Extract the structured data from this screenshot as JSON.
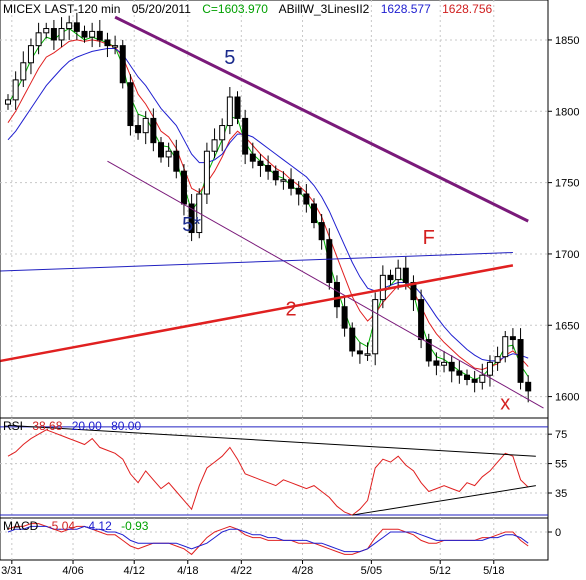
{
  "chart_data": [
    {
      "type": "candlestick",
      "header": {
        "symbol": "MICEX LAST-120 min",
        "date": "05/20/2011",
        "close_label": "C=1603.970",
        "indicator": "ABillW_3LinesII2",
        "value1": "1628.577",
        "value2": "1628.756"
      },
      "ylim": [
        1585,
        1878
      ],
      "y_ticks": [
        1600,
        1650,
        1700,
        1750,
        1800,
        1850
      ],
      "x_ticks": [
        "3/31",
        "4/06",
        "4/12",
        "4/18",
        "4/22",
        "4/28",
        "5/05",
        "5/12",
        "5/18"
      ],
      "x_tick_positions": [
        0.5,
        8.5,
        16.5,
        23.5,
        30.5,
        38.5,
        47.5,
        56.5,
        63.5
      ],
      "bars": 69,
      "series": [
        {
          "name": "close",
          "values": [
            1808,
            1822,
            1834,
            1846,
            1855,
            1858,
            1850,
            1858,
            1862,
            1856,
            1852,
            1856,
            1850,
            1846,
            1846,
            1820,
            1790,
            1785,
            1795,
            1778,
            1768,
            1772,
            1758,
            1735,
            1715,
            1742,
            1772,
            1780,
            1790,
            1810,
            1795,
            1770,
            1765,
            1762,
            1758,
            1752,
            1752,
            1746,
            1742,
            1735,
            1722,
            1710,
            1680,
            1663,
            1648,
            1632,
            1630,
            1630,
            1668,
            1685,
            1682,
            1690,
            1680,
            1668,
            1640,
            1625,
            1622,
            1624,
            1618,
            1615,
            1612,
            1610,
            1615,
            1624,
            1628,
            1642,
            1640,
            1610,
            1604
          ]
        },
        {
          "name": "green-ma",
          "values": [
            1805,
            1814,
            1824,
            1836,
            1845,
            1852,
            1850,
            1855,
            1858,
            1854,
            1850,
            1852,
            1850,
            1848,
            1845,
            1832,
            1810,
            1798,
            1796,
            1786,
            1776,
            1775,
            1766,
            1748,
            1730,
            1738,
            1756,
            1768,
            1780,
            1796,
            1795,
            1778,
            1770,
            1765,
            1760,
            1755,
            1753,
            1748,
            1744,
            1738,
            1728,
            1716,
            1694,
            1676,
            1660,
            1645,
            1638,
            1635,
            1655,
            1672,
            1678,
            1684,
            1680,
            1672,
            1652,
            1636,
            1628,
            1626,
            1622,
            1618,
            1615,
            1612,
            1614,
            1620,
            1625,
            1635,
            1636,
            1622,
            1614
          ]
        },
        {
          "name": "red-ma",
          "values": [
            1792,
            1800,
            1810,
            1820,
            1830,
            1838,
            1841,
            1845,
            1849,
            1850,
            1849,
            1850,
            1849,
            1847,
            1845,
            1838,
            1825,
            1812,
            1805,
            1796,
            1786,
            1782,
            1774,
            1760,
            1746,
            1743,
            1750,
            1758,
            1768,
            1780,
            1786,
            1782,
            1776,
            1770,
            1765,
            1760,
            1757,
            1752,
            1748,
            1743,
            1736,
            1726,
            1712,
            1698,
            1684,
            1670,
            1660,
            1653,
            1658,
            1666,
            1672,
            1678,
            1678,
            1674,
            1663,
            1652,
            1644,
            1638,
            1633,
            1628,
            1624,
            1620,
            1619,
            1621,
            1623,
            1629,
            1632,
            1627,
            1621
          ]
        },
        {
          "name": "blue-ma",
          "values": [
            1780,
            1786,
            1794,
            1802,
            1810,
            1818,
            1824,
            1830,
            1835,
            1838,
            1840,
            1842,
            1843,
            1844,
            1844,
            1840,
            1832,
            1824,
            1818,
            1810,
            1802,
            1796,
            1790,
            1780,
            1770,
            1764,
            1764,
            1766,
            1770,
            1778,
            1784,
            1784,
            1782,
            1778,
            1774,
            1770,
            1766,
            1762,
            1758,
            1754,
            1748,
            1740,
            1730,
            1718,
            1706,
            1694,
            1684,
            1676,
            1674,
            1676,
            1678,
            1680,
            1680,
            1678,
            1672,
            1664,
            1656,
            1649,
            1643,
            1638,
            1633,
            1629,
            1626,
            1625,
            1625,
            1628,
            1630,
            1629,
            1627
          ]
        }
      ],
      "trendlines": [
        {
          "name": "upper-purple",
          "points": [
            [
              14,
              1866
            ],
            [
              68,
              1723
            ]
          ]
        },
        {
          "name": "lower-purple",
          "points": [
            [
              13,
              1765
            ],
            [
              70,
              1592
            ]
          ]
        },
        {
          "name": "blue-line",
          "points": [
            [
              -1,
              1688
            ],
            [
              66,
              1701
            ]
          ]
        },
        {
          "name": "red-line",
          "points": [
            [
              -1,
              1625
            ],
            [
              66,
              1692
            ]
          ]
        }
      ],
      "annotations": [
        {
          "text": "5",
          "x": 29,
          "y": 1833,
          "color": "#1a2a8c"
        },
        {
          "text": "5*",
          "x": 24,
          "y": 1716,
          "color": "#1a2a8c"
        },
        {
          "text": "F",
          "x": 55,
          "y": 1707,
          "color": "#d42020"
        },
        {
          "text": "2",
          "x": 37,
          "y": 1657,
          "color": "#d42020"
        },
        {
          "text": "x",
          "x": 65,
          "y": 1591,
          "color": "#d42020"
        }
      ],
      "colors": {
        "upper": "#7a1a7a",
        "lower": "#7a1a7a",
        "green": "#00b000",
        "red": "#e02020",
        "blue": "#2020d0",
        "redline": "#e02020",
        "blueline": "#2020c0"
      }
    },
    {
      "type": "line",
      "name": "RSI",
      "header": {
        "label": "RSI",
        "value": "38.68",
        "lower": "20.00",
        "upper": "80.00"
      },
      "ylim": [
        18,
        86
      ],
      "y_ticks": [
        35,
        55,
        75
      ],
      "levels": [
        20,
        80
      ],
      "series": [
        {
          "name": "rsi",
          "values": [
            60,
            63,
            68,
            72,
            75,
            78,
            76,
            74,
            72,
            70,
            68,
            72,
            66,
            64,
            62,
            58,
            48,
            42,
            50,
            44,
            38,
            42,
            36,
            30,
            24,
            40,
            52,
            56,
            60,
            66,
            58,
            48,
            46,
            44,
            42,
            40,
            44,
            42,
            40,
            38,
            40,
            36,
            32,
            26,
            22,
            20,
            24,
            30,
            52,
            58,
            56,
            60,
            54,
            50,
            42,
            36,
            38,
            40,
            38,
            36,
            42,
            40,
            46,
            50,
            56,
            62,
            60,
            44,
            39
          ]
        }
      ],
      "trendlines": [
        {
          "name": "rsi-upper",
          "points": [
            [
              0,
              81
            ],
            [
              69,
              60
            ]
          ]
        },
        {
          "name": "rsi-lower",
          "points": [
            [
              45,
              20
            ],
            [
              69,
              40
            ]
          ]
        }
      ]
    },
    {
      "type": "line",
      "name": "MACD",
      "header": {
        "label": "MACD",
        "value1": "-5.04",
        "value2": "-4.12",
        "value3": "-0.93"
      },
      "ylim": [
        -10,
        5
      ],
      "y_ticks": [
        0
      ],
      "series": [
        {
          "name": "macd",
          "values": [
            1,
            2,
            2,
            3,
            3,
            2,
            1,
            0,
            1,
            2,
            2,
            1,
            0,
            -1,
            -1,
            -3,
            -5,
            -6,
            -5,
            -4,
            -4,
            -4,
            -5,
            -6,
            -8,
            -5,
            -2,
            0,
            1,
            2,
            1,
            -1,
            -2,
            -2,
            -3,
            -3,
            -3,
            -3,
            -4,
            -4,
            -4,
            -5,
            -6,
            -7,
            -8,
            -8,
            -7,
            -6,
            -2,
            1,
            1,
            1,
            0,
            -1,
            -3,
            -4,
            -4,
            -3,
            -3,
            -3,
            -3,
            -3,
            -2,
            -2,
            -1,
            0,
            0,
            -3,
            -5
          ]
        },
        {
          "name": "signal",
          "values": [
            0,
            1,
            1,
            2,
            2,
            2,
            1,
            1,
            1,
            1,
            2,
            1,
            1,
            0,
            0,
            -1,
            -3,
            -4,
            -4,
            -4,
            -4,
            -4,
            -4,
            -5,
            -6,
            -5,
            -4,
            -2,
            0,
            1,
            1,
            0,
            -1,
            -1,
            -2,
            -2,
            -3,
            -3,
            -3,
            -3,
            -4,
            -4,
            -5,
            -6,
            -7,
            -7,
            -7,
            -6,
            -4,
            -2,
            0,
            0,
            0,
            0,
            -1,
            -2,
            -3,
            -3,
            -3,
            -3,
            -3,
            -3,
            -3,
            -2,
            -2,
            -1,
            -1,
            -2,
            -4
          ]
        }
      ]
    }
  ]
}
